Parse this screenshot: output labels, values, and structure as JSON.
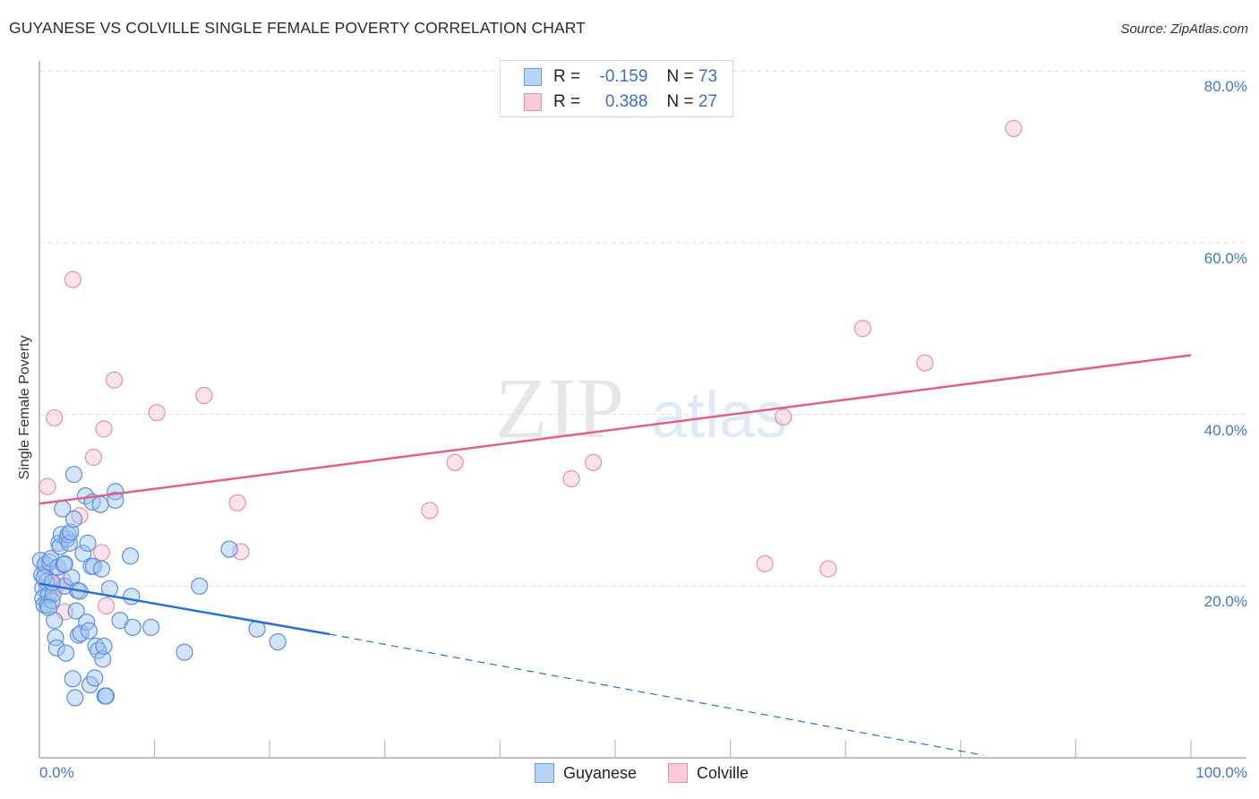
{
  "header": {
    "title": "GUYANESE VS COLVILLE SINGLE FEMALE POVERTY CORRELATION CHART",
    "source": "Source: ZipAtlas.com"
  },
  "stats": {
    "rows": [
      {
        "series": "Guyanese",
        "r_label": "R =",
        "r_value": "-0.159",
        "n_label": "N =",
        "n_value": "73"
      },
      {
        "series": "Colville",
        "r_label": "R =",
        "r_value": "0.388",
        "n_label": "N =",
        "n_value": "27"
      }
    ]
  },
  "legend": {
    "items": [
      {
        "label": "Guyanese",
        "color": "#a9c8f0",
        "border": "#6a9ce0"
      },
      {
        "label": "Colville",
        "color": "#f7c3d3",
        "border": "#e68fac"
      }
    ]
  },
  "watermark": {
    "zip": "ZIP",
    "atlas": "atlas"
  },
  "colors": {
    "guyanese_fill": "rgba(160,196,240,0.45)",
    "guyanese_stroke": "#5a8fdc",
    "guyanese_line": "#2a6fd6",
    "colville_fill": "rgba(247,190,210,0.45)",
    "colville_stroke": "#e890ad",
    "colville_line": "#e0608a",
    "axis_text": "#3f77d0",
    "grid": "#dddddd"
  },
  "chart_data": {
    "type": "scatter",
    "title": "GUYANESE VS COLVILLE SINGLE FEMALE POVERTY CORRELATION CHART",
    "xlabel": "",
    "ylabel": "Single Female Poverty",
    "xlim": [
      0,
      100
    ],
    "ylim": [
      0,
      80
    ],
    "x_tick_labels": [
      "0.0%",
      "100.0%"
    ],
    "y_tick_labels": [
      "20.0%",
      "40.0%",
      "60.0%",
      "80.0%"
    ],
    "y_ticks": [
      20,
      40,
      60,
      80
    ],
    "grid": "horizontal dashed",
    "legend_position": "bottom center",
    "series": [
      {
        "name": "Guyanese",
        "R": -0.159,
        "N": 73,
        "trend": {
          "x0": 0,
          "y0": 20.3,
          "x1": 25.2,
          "y1": 14.4,
          "dashed_to": {
            "x": 82.0,
            "y": 0.3
          }
        },
        "points": [
          [
            0.1,
            23.0
          ],
          [
            0.2,
            21.3
          ],
          [
            0.3,
            19.8
          ],
          [
            0.3,
            18.6
          ],
          [
            0.4,
            17.8
          ],
          [
            0.5,
            22.5
          ],
          [
            0.6,
            20.5
          ],
          [
            0.7,
            17.8
          ],
          [
            0.8,
            19.0
          ],
          [
            0.9,
            22.8
          ],
          [
            1.0,
            23.2
          ],
          [
            1.1,
            18.3
          ],
          [
            1.2,
            19.1
          ],
          [
            1.3,
            16.0
          ],
          [
            1.4,
            14.0
          ],
          [
            1.5,
            12.8
          ],
          [
            1.6,
            22.2
          ],
          [
            1.7,
            25.0
          ],
          [
            1.8,
            24.6
          ],
          [
            1.9,
            26.0
          ],
          [
            2.0,
            29.0
          ],
          [
            2.1,
            22.5
          ],
          [
            2.2,
            20.0
          ],
          [
            2.3,
            12.2
          ],
          [
            2.4,
            25.5
          ],
          [
            2.5,
            26.0
          ],
          [
            2.6,
            25.0
          ],
          [
            2.7,
            26.3
          ],
          [
            2.8,
            21.0
          ],
          [
            2.9,
            9.2
          ],
          [
            3.0,
            33.0
          ],
          [
            3.0,
            27.8
          ],
          [
            3.1,
            7.0
          ],
          [
            3.2,
            17.1
          ],
          [
            3.3,
            19.5
          ],
          [
            3.4,
            14.3
          ],
          [
            3.6,
            14.5
          ],
          [
            3.8,
            23.8
          ],
          [
            4.0,
            30.5
          ],
          [
            4.1,
            15.8
          ],
          [
            4.2,
            25.0
          ],
          [
            4.3,
            14.8
          ],
          [
            4.4,
            8.5
          ],
          [
            4.5,
            22.3
          ],
          [
            4.6,
            29.8
          ],
          [
            4.7,
            22.3
          ],
          [
            4.8,
            9.3
          ],
          [
            4.9,
            13.0
          ],
          [
            5.1,
            12.5
          ],
          [
            5.3,
            29.5
          ],
          [
            5.4,
            22.0
          ],
          [
            5.5,
            11.5
          ],
          [
            5.6,
            13.0
          ],
          [
            5.7,
            7.2
          ],
          [
            5.8,
            7.2
          ],
          [
            6.1,
            19.7
          ],
          [
            6.6,
            31.0
          ],
          [
            6.6,
            30.0
          ],
          [
            7.0,
            16.0
          ],
          [
            7.9,
            23.5
          ],
          [
            8.0,
            18.8
          ],
          [
            8.1,
            15.2
          ],
          [
            9.7,
            15.2
          ],
          [
            12.6,
            12.3
          ],
          [
            13.9,
            20.0
          ],
          [
            16.5,
            24.3
          ],
          [
            18.9,
            15.0
          ],
          [
            20.7,
            13.5
          ],
          [
            0.4,
            21.0
          ],
          [
            1.1,
            20.4
          ],
          [
            2.2,
            22.6
          ],
          [
            3.5,
            19.4
          ],
          [
            0.8,
            17.5
          ]
        ]
      },
      {
        "name": "Colville",
        "R": 0.388,
        "N": 27,
        "trend": {
          "x0": 0,
          "y0": 29.6,
          "x1": 100,
          "y1": 46.9
        },
        "points": [
          [
            0.5,
            21.6
          ],
          [
            0.7,
            31.6
          ],
          [
            1.3,
            39.6
          ],
          [
            1.5,
            20.0
          ],
          [
            2.0,
            20.7
          ],
          [
            2.2,
            17.0
          ],
          [
            2.9,
            55.7
          ],
          [
            3.5,
            28.2
          ],
          [
            4.7,
            35.0
          ],
          [
            5.4,
            23.9
          ],
          [
            5.6,
            38.3
          ],
          [
            5.8,
            17.7
          ],
          [
            6.5,
            44.0
          ],
          [
            10.2,
            40.2
          ],
          [
            14.3,
            42.2
          ],
          [
            17.2,
            29.7
          ],
          [
            17.5,
            24.0
          ],
          [
            33.9,
            28.8
          ],
          [
            36.1,
            34.4
          ],
          [
            46.2,
            32.5
          ],
          [
            48.1,
            34.4
          ],
          [
            63.0,
            22.6
          ],
          [
            64.6,
            39.7
          ],
          [
            68.5,
            22.0
          ],
          [
            71.5,
            50.0
          ],
          [
            76.9,
            46.0
          ],
          [
            84.6,
            73.3
          ]
        ]
      }
    ]
  }
}
